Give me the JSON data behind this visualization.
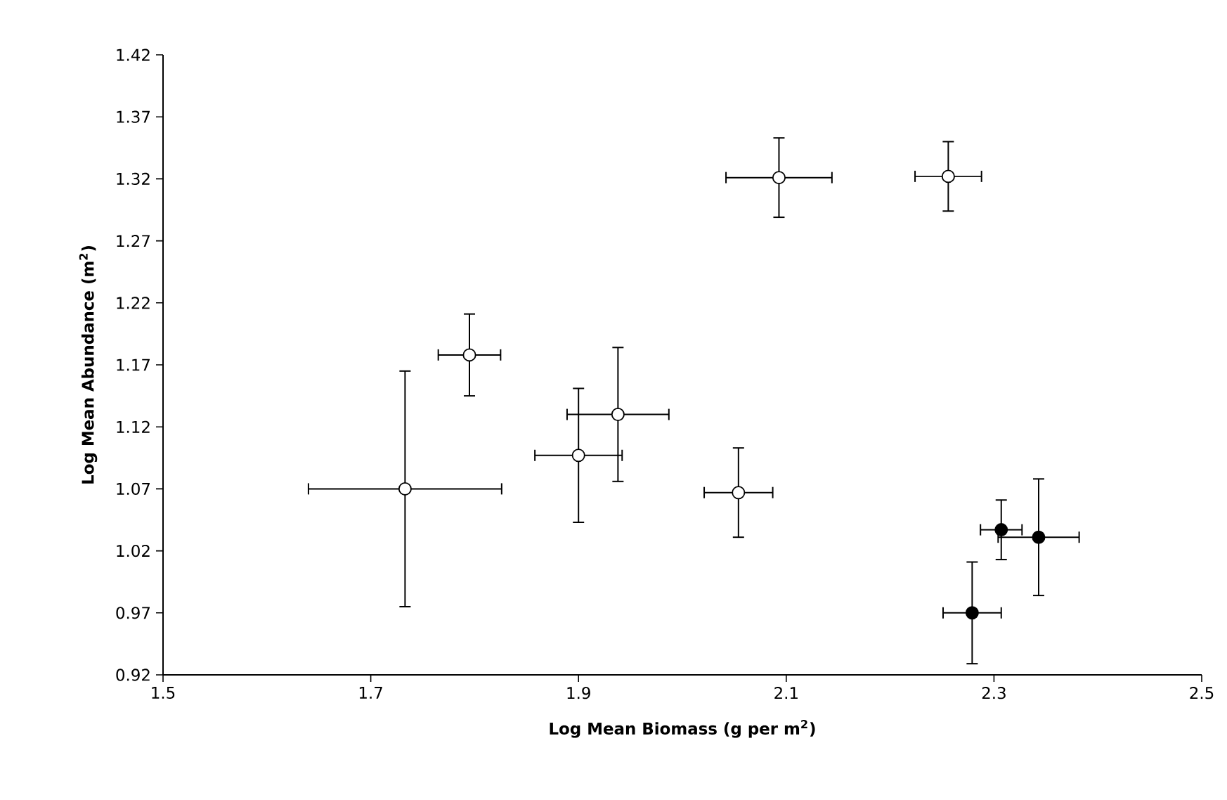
{
  "chart_data": {
    "type": "scatter",
    "xlabel": "Log Mean Biomass (g per m$^{2}$)",
    "ylabel": "Log Mean Abundance (m$^{2}$)",
    "xlim": [
      1.5,
      2.5
    ],
    "xticks": [
      1.5,
      1.7,
      1.9,
      2.1,
      2.3,
      2.5
    ],
    "ylim": [
      0.92,
      1.42
    ],
    "yticks": [
      0.92,
      0.97,
      1.02,
      1.07,
      1.12,
      1.17,
      1.22,
      1.27,
      1.32,
      1.37,
      1.42
    ],
    "marker": "circle",
    "series": [
      {
        "color": "#ffffff",
        "x": [
          1.733,
          1.795,
          1.9,
          1.938,
          2.054,
          2.093,
          2.256
        ],
        "values": [
          1.07,
          1.178,
          1.097,
          1.13,
          1.067,
          1.321,
          1.322
        ],
        "xerrors": [
          0.093,
          0.03,
          0.042,
          0.049,
          0.033,
          0.051,
          0.032
        ],
        "errors": [
          0.095,
          0.033,
          0.054,
          0.054,
          0.036,
          0.032,
          0.028
        ]
      },
      {
        "color": "#000000",
        "x": [
          2.279,
          2.307,
          2.343
        ],
        "values": [
          0.97,
          1.037,
          1.031
        ],
        "xerrors": [
          0.028,
          0.02,
          0.039
        ],
        "errors": [
          0.041,
          0.024,
          0.047
        ]
      }
    ]
  }
}
